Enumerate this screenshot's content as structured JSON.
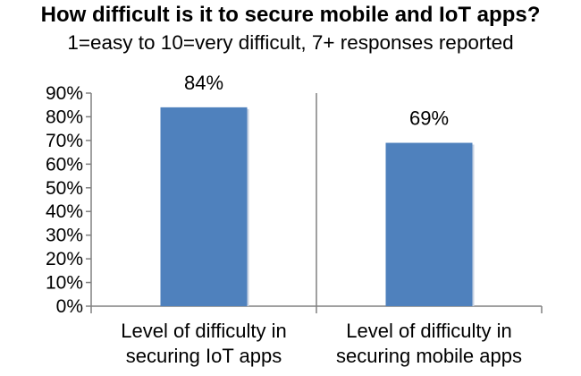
{
  "chart_data": {
    "type": "bar",
    "title": "How difficult is it to secure mobile and IoT apps?",
    "subtitle": "1=easy to 10=very difficult, 7+ responses reported",
    "categories": [
      [
        "Level of difficulty in",
        "securing IoT apps"
      ],
      [
        "Level of difficulty in",
        "securing mobile apps"
      ]
    ],
    "values": [
      84,
      69
    ],
    "value_labels": [
      "84%",
      "69%"
    ],
    "y_ticks": [
      "0%",
      "10%",
      "20%",
      "30%",
      "40%",
      "50%",
      "60%",
      "70%",
      "80%",
      "90%"
    ],
    "ylim": [
      0,
      90
    ],
    "xlabel": "",
    "ylabel": "",
    "grid": false,
    "legend": "none",
    "bar_color": "#4f81bd",
    "axis_color": "#808080"
  }
}
